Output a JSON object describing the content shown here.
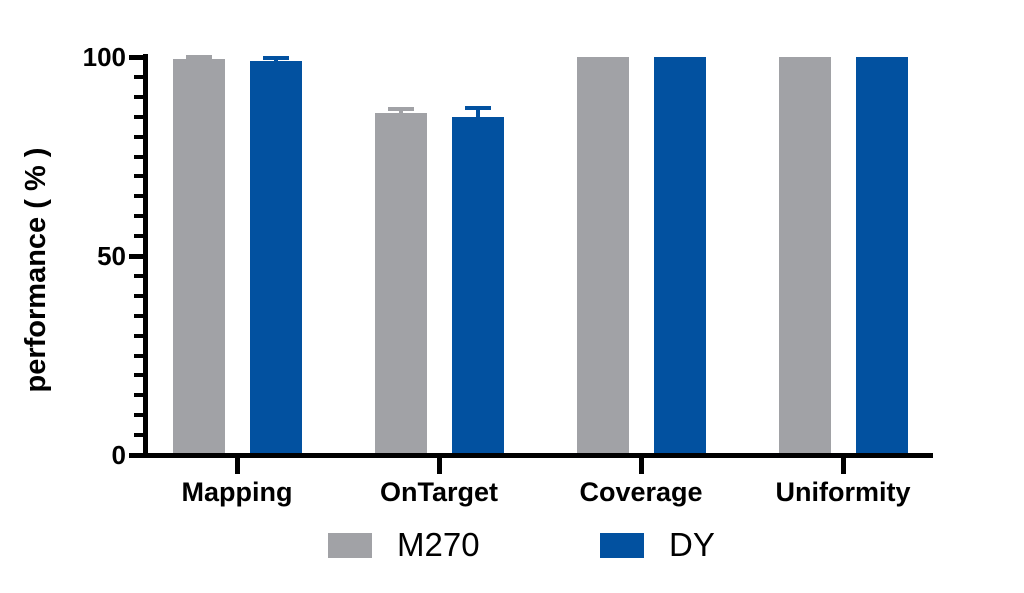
{
  "chart_data": {
    "type": "bar",
    "title": "",
    "categories": [
      "Mapping",
      "OnTarget",
      "Coverage",
      "Uniformity"
    ],
    "series": [
      {
        "name": "M270",
        "color": "#a1a2a6",
        "values": [
          99.5,
          86,
          100,
          100
        ],
        "errors": [
          0.5,
          1,
          0,
          0
        ]
      },
      {
        "name": "DY",
        "color": "#0251a0",
        "values": [
          99,
          85,
          100,
          100
        ],
        "errors": [
          0.7,
          2.3,
          0,
          0
        ]
      }
    ],
    "xlabel": "",
    "ylabel": "performance ( % )",
    "ylim": [
      0,
      100
    ],
    "yticks": [
      0,
      50,
      100
    ],
    "minor_tick_step": 5,
    "grid": false,
    "legend_position": "bottom",
    "error_bars": "upper cap only",
    "axis_color": "#000000",
    "background_color": "#ffffff"
  }
}
